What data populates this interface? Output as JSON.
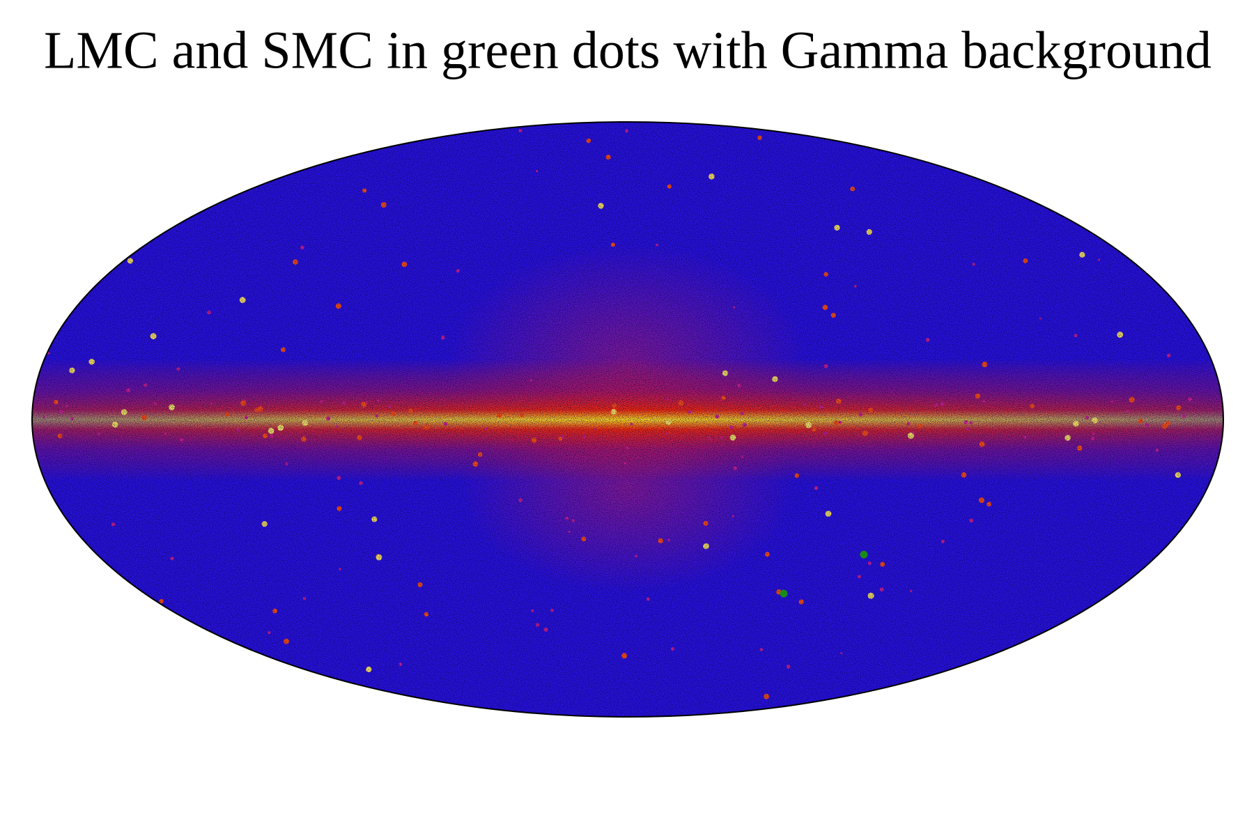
{
  "title": "LMC and SMC in green dots with Gamma background"
}
